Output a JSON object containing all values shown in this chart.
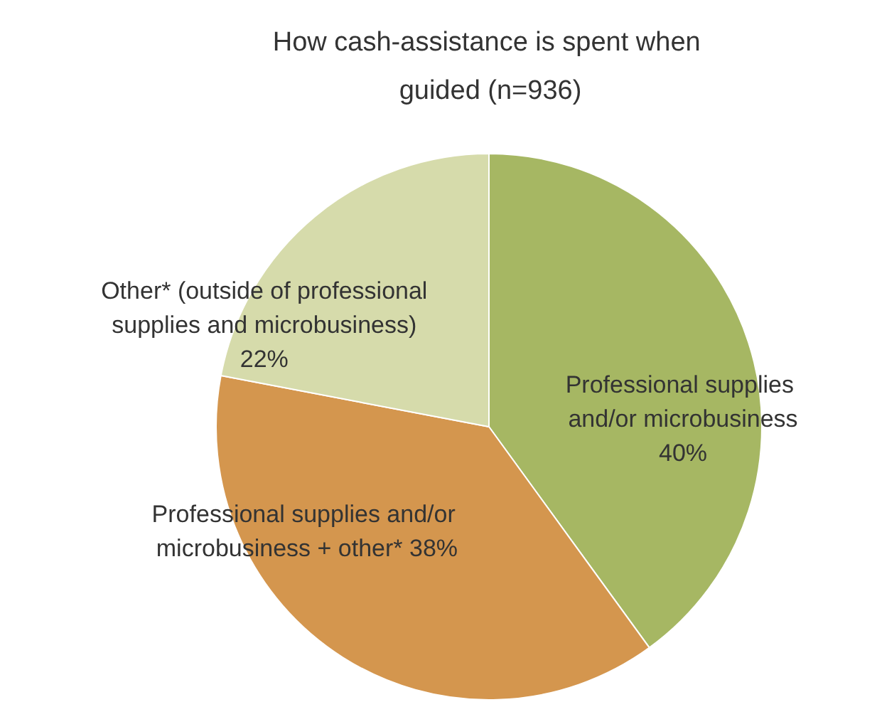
{
  "chart_data": {
    "type": "pie",
    "title": "How cash-assistance is spent when guided (n=936)",
    "categories": [
      "Professional supplies and/or microbusiness",
      "Professional supplies and/or microbusiness + other*",
      "Other* (outside of professional supplies and microbusiness)"
    ],
    "values": [
      40,
      38,
      22
    ],
    "colors": [
      "#a6b763",
      "#d4964e",
      "#d6dbab"
    ],
    "value_labels": [
      "40%",
      "38%",
      "22%"
    ],
    "legend": false
  }
}
